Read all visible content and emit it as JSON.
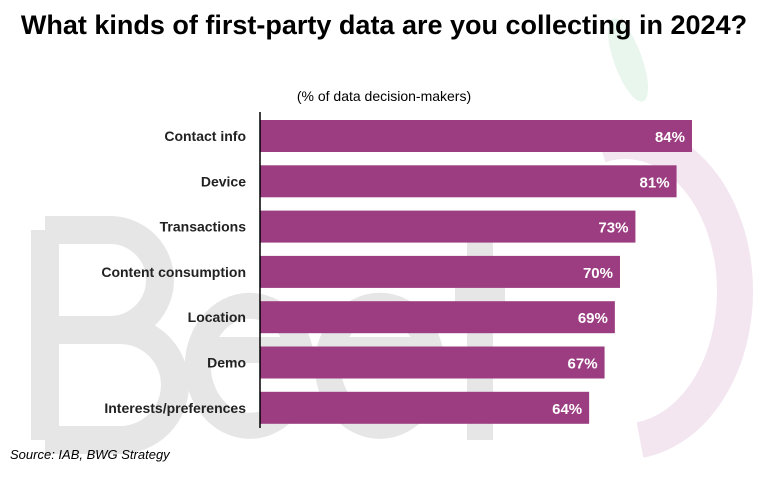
{
  "chart_data": {
    "type": "bar",
    "orientation": "horizontal",
    "title": "What kinds of first-party data are you collecting in 2024?",
    "subtitle": "(% of data decision-makers)",
    "categories": [
      "Contact info",
      "Device",
      "Transactions",
      "Content consumption",
      "Location",
      "Demo",
      "Interests/preferences"
    ],
    "values": [
      84,
      81,
      73,
      70,
      69,
      67,
      64
    ],
    "data_labels": [
      "84%",
      "81%",
      "73%",
      "70%",
      "69%",
      "67%",
      "64%"
    ],
    "xlim": [
      0,
      84
    ],
    "grid": false,
    "bar_color": "#9B3D80"
  },
  "source": "Source: IAB, BWG Strategy",
  "watermark": "BeetTV"
}
